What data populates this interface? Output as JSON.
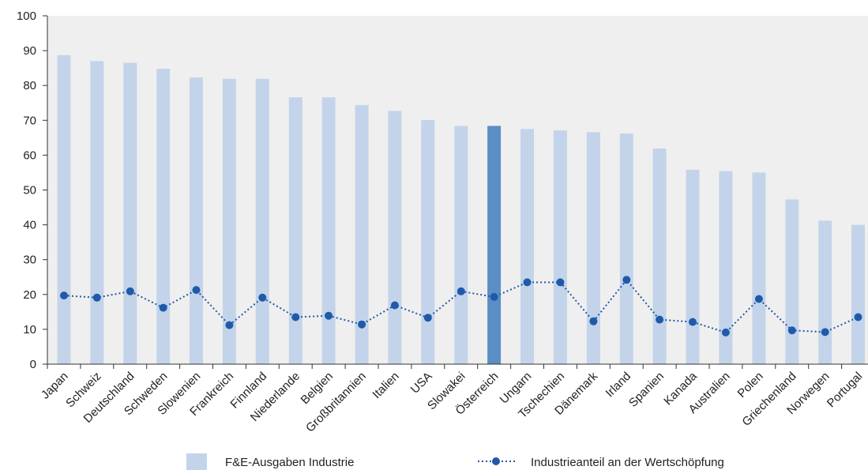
{
  "chart_data": {
    "type": "bar",
    "title": "",
    "xlabel": "",
    "ylabel": "",
    "ylim": [
      0,
      100
    ],
    "yticks": [
      0,
      10,
      20,
      30,
      40,
      50,
      60,
      70,
      80,
      90,
      100
    ],
    "grid": false,
    "legend_position": "bottom",
    "highlight_category": "Österreich",
    "categories": [
      "Japan",
      "Schweiz",
      "Deutschland",
      "Schweden",
      "Slowenien",
      "Frankreich",
      "Finnland",
      "Niederlande",
      "Belgien",
      "Großbritannien",
      "Italien",
      "USA",
      "Slowakei",
      "Österreich",
      "Ungarn",
      "Tschechien",
      "Dänemark",
      "Irland",
      "Spanien",
      "Kanada",
      "Australien",
      "Polen",
      "Griechenland",
      "Norwegen",
      "Portugal"
    ],
    "series": [
      {
        "name": "F&E-Ausgaben Industrie",
        "type": "bar",
        "color": "#c3d4ea",
        "highlight_color": "#5b8ec4",
        "values": [
          88.7,
          87.0,
          86.5,
          84.8,
          82.3,
          81.9,
          81.9,
          76.6,
          76.6,
          74.4,
          72.7,
          70.1,
          68.4,
          68.4,
          67.5,
          67.1,
          66.6,
          66.2,
          61.9,
          55.8,
          55.4,
          55.0,
          47.3,
          41.2,
          40.0
        ]
      },
      {
        "name": "Industrieanteil an der Wertschöpfung",
        "type": "line",
        "style": "dotted",
        "color": "#1f5aa8",
        "values": [
          19.7,
          19.1,
          20.9,
          16.2,
          21.3,
          11.2,
          19.1,
          13.5,
          13.9,
          11.4,
          16.9,
          13.3,
          20.9,
          19.3,
          23.5,
          23.5,
          12.3,
          24.2,
          12.8,
          12.1,
          9.1,
          18.7,
          9.7,
          9.2,
          13.5
        ]
      }
    ]
  }
}
